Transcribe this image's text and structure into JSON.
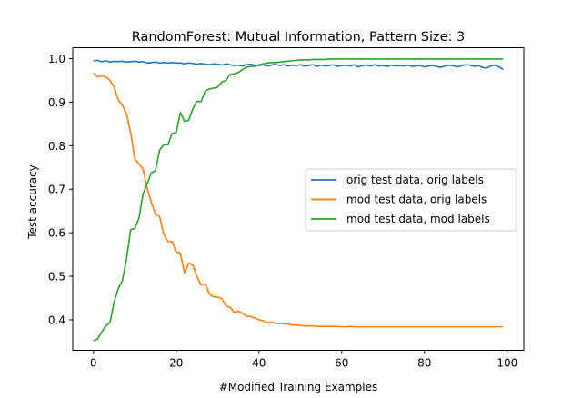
{
  "chart_data": {
    "type": "line",
    "title": "RandomForest: Mutual Information, Pattern Size: 3",
    "xlabel": "#Modified Training Examples",
    "ylabel": "Test accuracy",
    "xlim": [
      -5,
      104
    ],
    "ylim": [
      0.33,
      1.025
    ],
    "xticks": [
      0,
      20,
      40,
      60,
      80,
      100
    ],
    "yticks": [
      0.4,
      0.5,
      0.6,
      0.7,
      0.8,
      0.9,
      1.0
    ],
    "ytick_labels": [
      "0.4",
      "0.5",
      "0.6",
      "0.7",
      "0.8",
      "0.9",
      "1.0"
    ],
    "grid": false,
    "legend_position": "center-right",
    "x": [
      0,
      1,
      2,
      3,
      4,
      5,
      6,
      7,
      8,
      9,
      10,
      11,
      12,
      13,
      14,
      15,
      16,
      17,
      18,
      19,
      20,
      21,
      22,
      23,
      24,
      25,
      26,
      27,
      28,
      29,
      30,
      31,
      32,
      33,
      34,
      35,
      36,
      37,
      38,
      39,
      40,
      41,
      42,
      43,
      44,
      45,
      46,
      47,
      48,
      49,
      50,
      51,
      52,
      53,
      54,
      55,
      56,
      57,
      58,
      59,
      60,
      61,
      62,
      63,
      64,
      65,
      66,
      67,
      68,
      69,
      70,
      71,
      72,
      73,
      74,
      75,
      76,
      77,
      78,
      79,
      80,
      81,
      82,
      83,
      84,
      85,
      86,
      87,
      88,
      89,
      90,
      91,
      92,
      93,
      94,
      95,
      96,
      97,
      98,
      99
    ],
    "series": [
      {
        "name": "orig test data, orig labels",
        "color": "#1f77b4",
        "values": [
          0.995,
          0.996,
          0.993,
          0.995,
          0.992,
          0.994,
          0.993,
          0.994,
          0.992,
          0.993,
          0.994,
          0.992,
          0.993,
          0.99,
          0.991,
          0.992,
          0.99,
          0.991,
          0.99,
          0.991,
          0.99,
          0.99,
          0.988,
          0.99,
          0.989,
          0.987,
          0.989,
          0.987,
          0.986,
          0.988,
          0.987,
          0.985,
          0.988,
          0.986,
          0.984,
          0.985,
          0.983,
          0.986,
          0.987,
          0.985,
          0.984,
          0.986,
          0.983,
          0.985,
          0.987,
          0.984,
          0.986,
          0.983,
          0.985,
          0.984,
          0.986,
          0.983,
          0.984,
          0.986,
          0.982,
          0.985,
          0.983,
          0.984,
          0.986,
          0.982,
          0.984,
          0.985,
          0.983,
          0.986,
          0.981,
          0.984,
          0.985,
          0.983,
          0.986,
          0.983,
          0.984,
          0.982,
          0.985,
          0.983,
          0.984,
          0.983,
          0.985,
          0.982,
          0.983,
          0.984,
          0.981,
          0.983,
          0.984,
          0.982,
          0.98,
          0.983,
          0.985,
          0.983,
          0.981,
          0.984,
          0.986,
          0.985,
          0.982,
          0.984,
          0.98,
          0.978,
          0.983,
          0.985,
          0.981,
          0.975
        ]
      },
      {
        "name": "mod test data, orig labels",
        "color": "#ff7f0e",
        "values": [
          0.966,
          0.958,
          0.96,
          0.958,
          0.95,
          0.935,
          0.905,
          0.893,
          0.873,
          0.83,
          0.77,
          0.758,
          0.746,
          0.702,
          0.67,
          0.642,
          0.637,
          0.596,
          0.58,
          0.58,
          0.556,
          0.553,
          0.508,
          0.53,
          0.526,
          0.5,
          0.48,
          0.483,
          0.46,
          0.453,
          0.452,
          0.449,
          0.432,
          0.429,
          0.417,
          0.42,
          0.415,
          0.408,
          0.408,
          0.404,
          0.4,
          0.398,
          0.393,
          0.395,
          0.392,
          0.392,
          0.391,
          0.39,
          0.388,
          0.388,
          0.387,
          0.386,
          0.386,
          0.386,
          0.385,
          0.385,
          0.385,
          0.385,
          0.385,
          0.385,
          0.384,
          0.384,
          0.385,
          0.384,
          0.384,
          0.384,
          0.384,
          0.384,
          0.384,
          0.384,
          0.384,
          0.384,
          0.384,
          0.384,
          0.384,
          0.384,
          0.384,
          0.384,
          0.384,
          0.384,
          0.384,
          0.384,
          0.384,
          0.384,
          0.384,
          0.384,
          0.384,
          0.384,
          0.384,
          0.384,
          0.384,
          0.384,
          0.384,
          0.384,
          0.384,
          0.384,
          0.384,
          0.384,
          0.384,
          0.384
        ]
      },
      {
        "name": "mod test data, mod labels",
        "color": "#2ca02c",
        "values": [
          0.352,
          0.356,
          0.372,
          0.386,
          0.394,
          0.44,
          0.472,
          0.49,
          0.54,
          0.607,
          0.61,
          0.633,
          0.69,
          0.712,
          0.738,
          0.742,
          0.79,
          0.802,
          0.802,
          0.828,
          0.83,
          0.876,
          0.856,
          0.858,
          0.884,
          0.902,
          0.901,
          0.925,
          0.93,
          0.932,
          0.934,
          0.946,
          0.95,
          0.963,
          0.965,
          0.968,
          0.975,
          0.98,
          0.982,
          0.982,
          0.986,
          0.988,
          0.99,
          0.991,
          0.991,
          0.992,
          0.993,
          0.994,
          0.995,
          0.996,
          0.997,
          0.997,
          0.997,
          0.998,
          0.998,
          0.998,
          0.998,
          0.999,
          0.999,
          0.999,
          0.999,
          0.999,
          0.999,
          0.999,
          0.999,
          0.999,
          0.999,
          0.999,
          0.999,
          0.999,
          0.999,
          0.999,
          0.999,
          0.999,
          0.999,
          0.999,
          0.999,
          0.999,
          0.999,
          0.999,
          0.999,
          0.999,
          0.999,
          0.999,
          0.999,
          0.999,
          0.999,
          0.999,
          0.999,
          0.999,
          0.999,
          0.999,
          0.999,
          0.999,
          0.999,
          0.999,
          0.999,
          0.999,
          0.999,
          0.999
        ]
      }
    ]
  }
}
